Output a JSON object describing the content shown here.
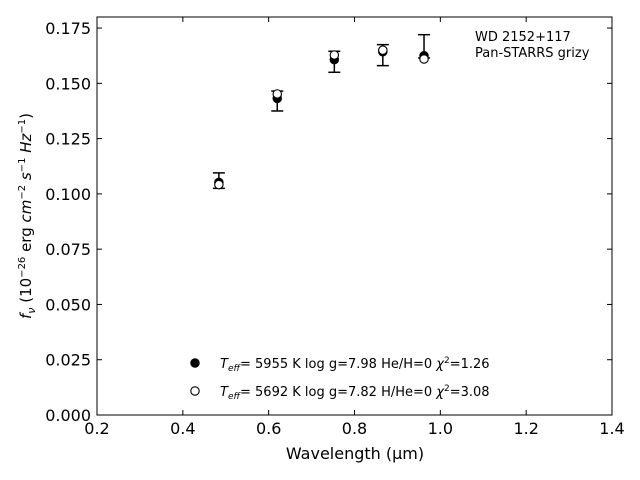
{
  "chart_data": {
    "type": "scatter",
    "annotation": [
      "WD 2152+117",
      "Pan-STARRS grizy"
    ],
    "xlabel": "Wavelength (μm)",
    "ylabel": "f_ν (10^-26 erg cm^-2 s^-1 Hz^-1)",
    "xlim": [
      0.2,
      1.4
    ],
    "ylim": [
      0.0,
      0.18
    ],
    "xticks": [
      "0.2",
      "0.4",
      "0.6",
      "0.8",
      "1.0",
      "1.2",
      "1.4"
    ],
    "yticks": [
      "0.000",
      "0.025",
      "0.050",
      "0.075",
      "0.100",
      "0.125",
      "0.150",
      "0.175"
    ],
    "grid": false,
    "legend_position": "bottom-center",
    "observed": {
      "x": [
        0.484,
        0.62,
        0.753,
        0.866,
        0.962
      ],
      "y": [
        0.1055,
        0.144,
        0.1605,
        0.163,
        0.1665
      ],
      "yerr_low": [
        0.1025,
        0.1375,
        0.155,
        0.158,
        0.1615
      ],
      "yerr_high": [
        0.1095,
        0.1465,
        0.1645,
        0.1675,
        0.172
      ]
    },
    "series": [
      {
        "marker": "filled-circle",
        "teff_label": "T",
        "teff_sub": "eff",
        "text": "=  5955 K  log g=7.98  He/H=0  ",
        "chi_label": "χ",
        "chi_sup": "2",
        "chi_value": "=1.26",
        "x": [
          0.484,
          0.62,
          0.753,
          0.866,
          0.962
        ],
        "y": [
          0.1052,
          0.1432,
          0.1607,
          0.1643,
          0.1625
        ]
      },
      {
        "marker": "open-circle",
        "teff_label": "T",
        "teff_sub": "eff",
        "text": "=  5692 K  log g=7.82  H/He=0  ",
        "chi_label": "χ",
        "chi_sup": "2",
        "chi_value": "=3.08",
        "x": [
          0.484,
          0.62,
          0.753,
          0.866,
          0.962
        ],
        "y": [
          0.1042,
          0.1452,
          0.1628,
          0.165,
          0.161
        ]
      }
    ]
  }
}
